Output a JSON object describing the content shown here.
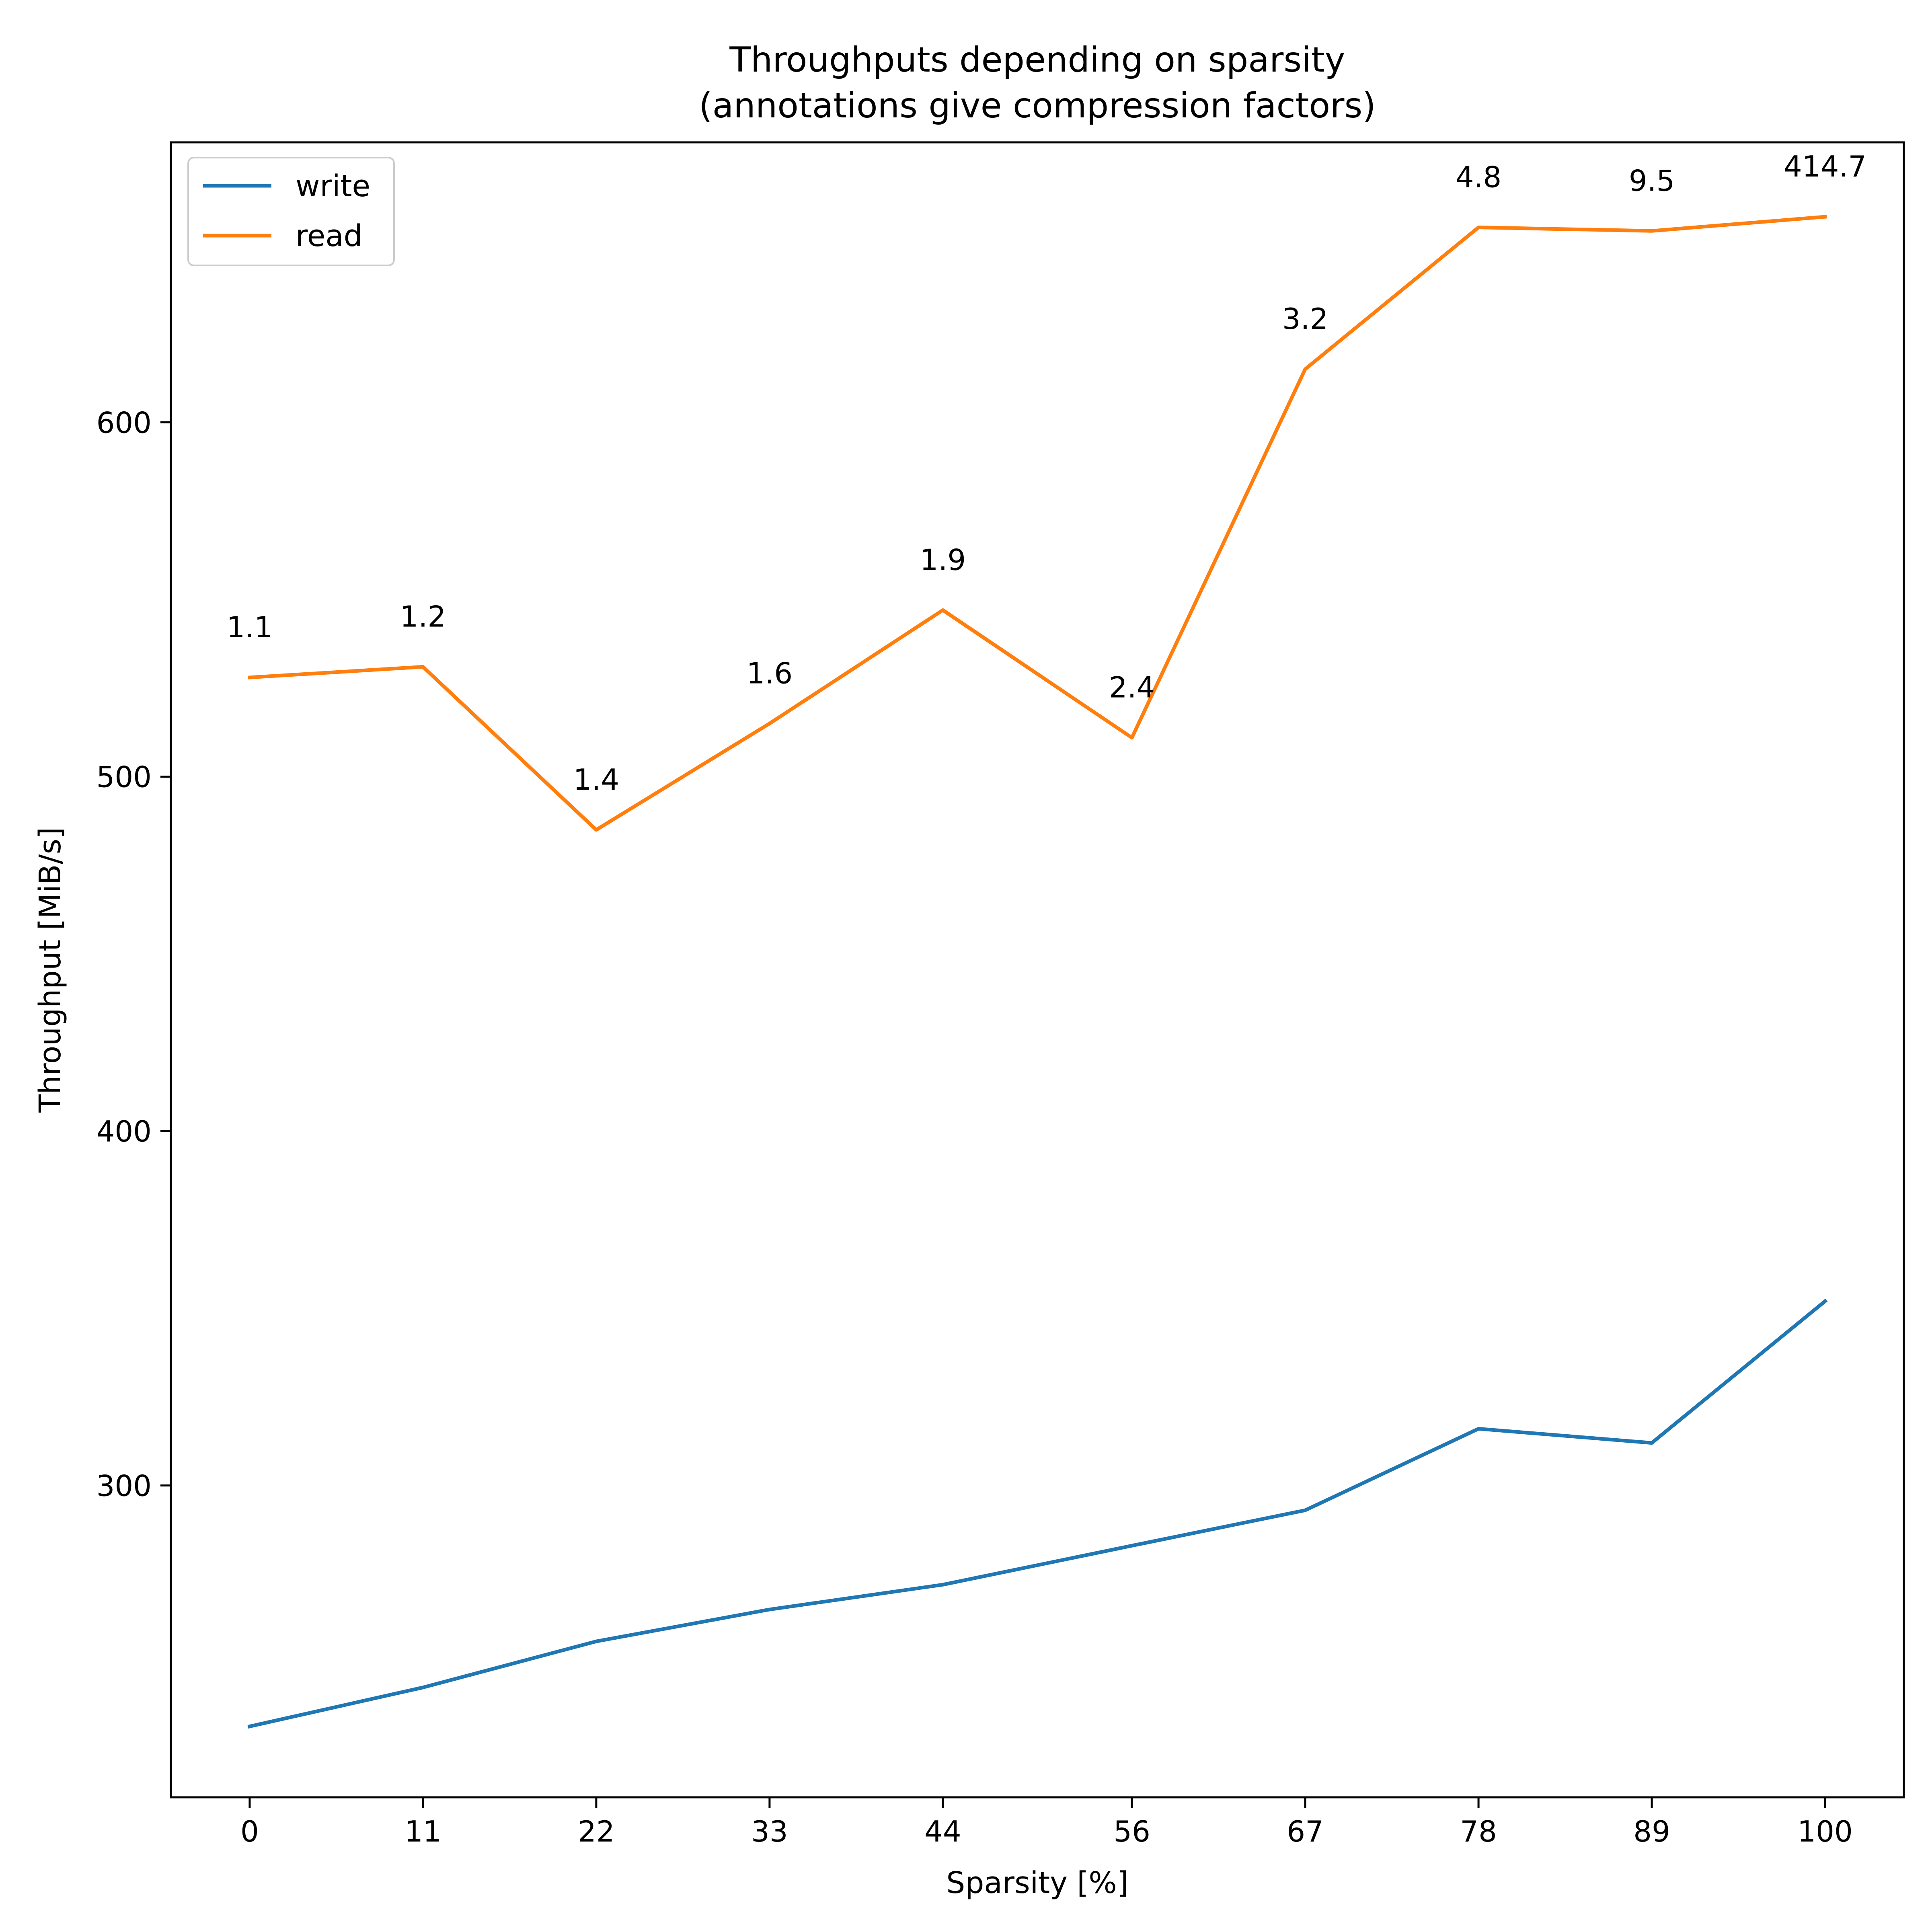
{
  "chart_data": {
    "type": "line",
    "title_line1": "Throughputs depending on sparsity",
    "title_line2": "(annotations give compression factors)",
    "xlabel": "Sparsity [%]",
    "ylabel": "Throughput [MiB/s]",
    "x": [
      0,
      11,
      22,
      33,
      44,
      56,
      67,
      78,
      89,
      100
    ],
    "x_tick_labels": [
      "0",
      "11",
      "22",
      "33",
      "44",
      "56",
      "67",
      "78",
      "89",
      "100"
    ],
    "y_ticks": [
      300,
      400,
      500,
      600
    ],
    "y_tick_labels": [
      "300",
      "400",
      "500",
      "600"
    ],
    "ylim": [
      212,
      679
    ],
    "xlim": [
      -5,
      105
    ],
    "grid": false,
    "legend_position": "top-left",
    "series": [
      {
        "name": "write",
        "color": "#1f77b4",
        "values": [
          232,
          243,
          256,
          265,
          272,
          283,
          293,
          316,
          312,
          352
        ]
      },
      {
        "name": "read",
        "color": "#ff7f0e",
        "values": [
          528,
          531,
          485,
          515,
          547,
          511,
          615,
          655,
          654,
          658
        ]
      }
    ],
    "annotations": [
      "1.1",
      "1.2",
      "1.4",
      "1.6",
      "1.9",
      "2.4",
      "3.2",
      "4.8",
      "9.5",
      "414.7"
    ]
  }
}
